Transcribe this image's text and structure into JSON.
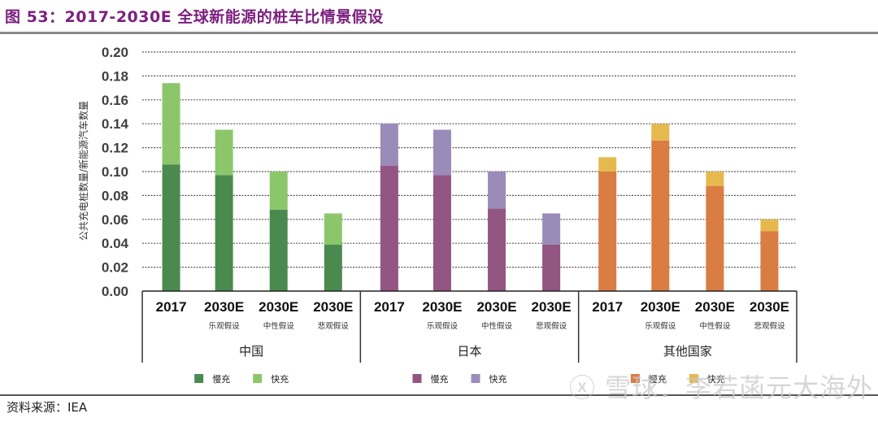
{
  "title": "图 53：2017-2030E 全球新能源的桩车比情景假设",
  "source": "资料来源：IEA",
  "watermark": "ⓧ 雪球：李若菡元大海外",
  "chart_data": {
    "type": "bar",
    "stacked": true,
    "title": "2017-2030E 全球新能源的桩车比情景假设",
    "ylabel": "公共充电桩数量/新能源汽车数量",
    "xlabel": "",
    "ylim": [
      0,
      0.2
    ],
    "yticks": [
      "0.00",
      "0.02",
      "0.04",
      "0.06",
      "0.08",
      "0.10",
      "0.12",
      "0.14",
      "0.16",
      "0.18",
      "0.20"
    ],
    "ytick_values": [
      0,
      0.02,
      0.04,
      0.06,
      0.08,
      0.1,
      0.12,
      0.14,
      0.16,
      0.18,
      0.2
    ],
    "grid": true,
    "legend_position": "bottom",
    "groups": [
      {
        "name": "中国",
        "colors": {
          "slow": "#4a8a4f",
          "fast": "#8cc66b"
        },
        "legend": [
          "慢充",
          "快充"
        ],
        "categories": [
          {
            "label": "2017",
            "sub": "",
            "slow": 0.106,
            "fast": 0.068
          },
          {
            "label": "2030E",
            "sub": "乐观假设",
            "slow": 0.097,
            "fast": 0.038
          },
          {
            "label": "2030E",
            "sub": "中性假设",
            "slow": 0.068,
            "fast": 0.032
          },
          {
            "label": "2030E",
            "sub": "悲观假设",
            "slow": 0.039,
            "fast": 0.026
          }
        ]
      },
      {
        "name": "日本",
        "colors": {
          "slow": "#935582",
          "fast": "#9b8bb9"
        },
        "legend": [
          "慢充",
          "快充"
        ],
        "categories": [
          {
            "label": "2017",
            "sub": "",
            "slow": 0.105,
            "fast": 0.035
          },
          {
            "label": "2030E",
            "sub": "乐观假设",
            "slow": 0.097,
            "fast": 0.038
          },
          {
            "label": "2030E",
            "sub": "中性假设",
            "slow": 0.069,
            "fast": 0.031
          },
          {
            "label": "2030E",
            "sub": "悲观假设",
            "slow": 0.039,
            "fast": 0.026
          }
        ]
      },
      {
        "name": "其他国家",
        "colors": {
          "slow": "#d97d42",
          "fast": "#e6b94e"
        },
        "legend": [
          "慢充",
          "快充"
        ],
        "categories": [
          {
            "label": "2017",
            "sub": "",
            "slow": 0.1,
            "fast": 0.012
          },
          {
            "label": "2030E",
            "sub": "乐观假设",
            "slow": 0.126,
            "fast": 0.014
          },
          {
            "label": "2030E",
            "sub": "中性假设",
            "slow": 0.088,
            "fast": 0.012
          },
          {
            "label": "2030E",
            "sub": "悲观假设",
            "slow": 0.05,
            "fast": 0.01
          }
        ]
      }
    ]
  }
}
